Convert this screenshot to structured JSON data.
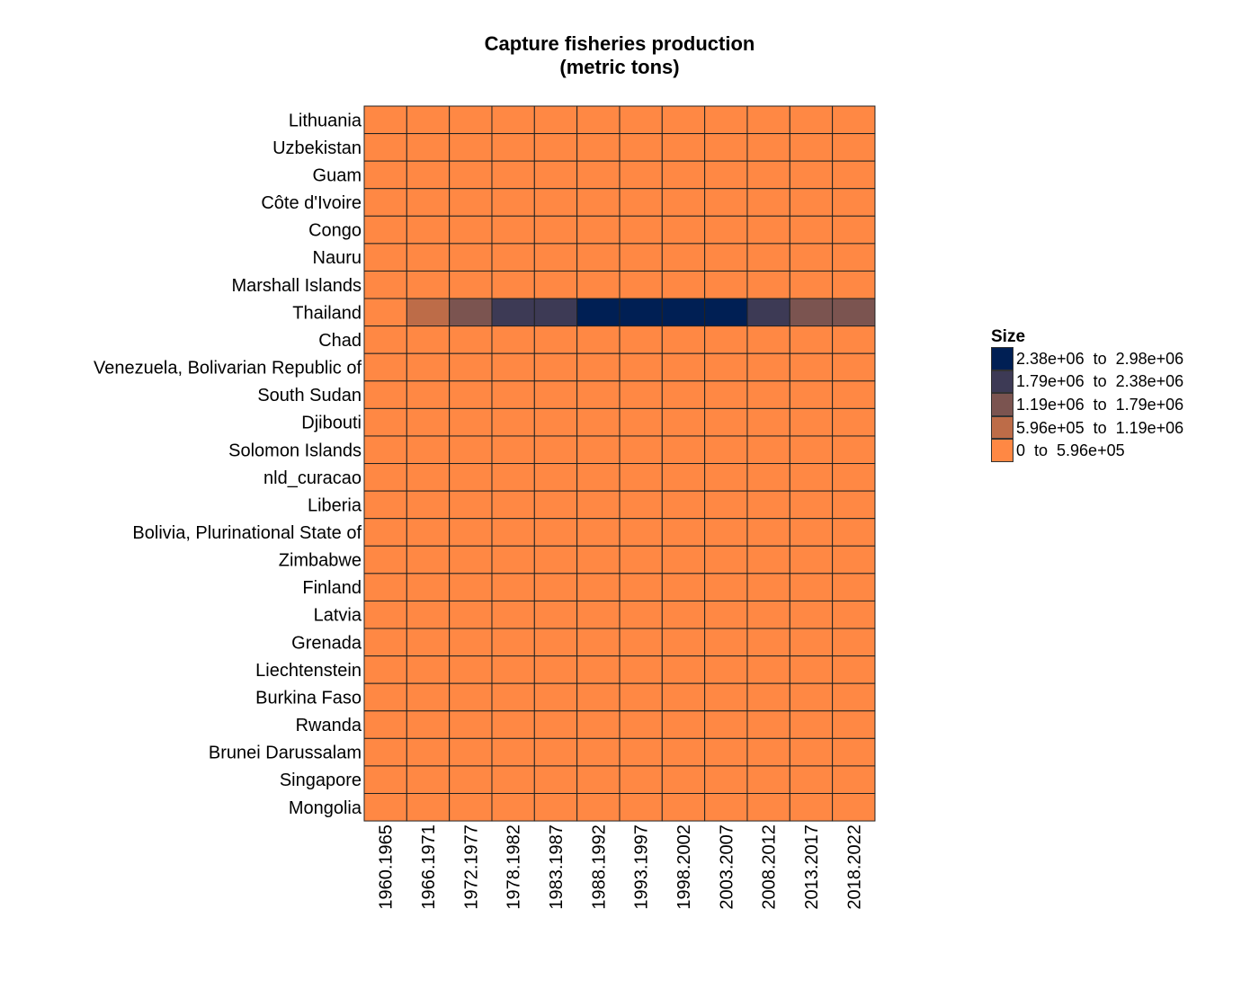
{
  "chart_data": {
    "type": "heatmap",
    "title": [
      "Capture fisheries production",
      "(metric tons)"
    ],
    "xlabel": "",
    "ylabel": "",
    "x_categories": [
      "1960.1965",
      "1966.1971",
      "1972.1977",
      "1978.1982",
      "1983.1987",
      "1988.1992",
      "1993.1997",
      "1998.2002",
      "2003.2007",
      "2008.2012",
      "2013.2017",
      "2018.2022"
    ],
    "y_categories": [
      "Lithuania",
      "Uzbekistan",
      "Guam",
      "Côte d'Ivoire",
      "Congo",
      "Nauru",
      "Marshall Islands",
      "Thailand",
      "Chad",
      "Venezuela, Bolivarian Republic of",
      "South Sudan",
      "Djibouti",
      "Solomon Islands",
      "nld_curacao",
      "Liberia",
      "Bolivia, Plurinational State of",
      "Zimbabwe",
      "Finland",
      "Latvia",
      "Grenada",
      "Liechtenstein",
      "Burkina Faso",
      "Rwanda",
      "Brunei Darussalam",
      "Singapore",
      "Mongolia"
    ],
    "legend": {
      "title": "Size",
      "position": "right",
      "bins": [
        {
          "label": "2.38e+06  to  2.98e+06",
          "color": "#001F54"
        },
        {
          "label": "1.79e+06  to  2.38e+06",
          "color": "#3D3A55"
        },
        {
          "label": "1.19e+06  to  1.79e+06",
          "color": "#7B5450"
        },
        {
          "label": "5.96e+05  to  1.19e+06",
          "color": "#BD6C48"
        },
        {
          "label": "0  to  5.96e+05",
          "color": "#FF8844"
        }
      ]
    },
    "bin_index_note_values": "values[row][col] gives the legend bin index (0 = highest bin, 4 = lowest bin)",
    "values": [
      [
        4,
        4,
        4,
        4,
        4,
        4,
        4,
        4,
        4,
        4,
        4,
        4
      ],
      [
        4,
        4,
        4,
        4,
        4,
        4,
        4,
        4,
        4,
        4,
        4,
        4
      ],
      [
        4,
        4,
        4,
        4,
        4,
        4,
        4,
        4,
        4,
        4,
        4,
        4
      ],
      [
        4,
        4,
        4,
        4,
        4,
        4,
        4,
        4,
        4,
        4,
        4,
        4
      ],
      [
        4,
        4,
        4,
        4,
        4,
        4,
        4,
        4,
        4,
        4,
        4,
        4
      ],
      [
        4,
        4,
        4,
        4,
        4,
        4,
        4,
        4,
        4,
        4,
        4,
        4
      ],
      [
        4,
        4,
        4,
        4,
        4,
        4,
        4,
        4,
        4,
        4,
        4,
        4
      ],
      [
        4,
        3,
        2,
        1,
        1,
        0,
        0,
        0,
        0,
        1,
        2,
        2
      ],
      [
        4,
        4,
        4,
        4,
        4,
        4,
        4,
        4,
        4,
        4,
        4,
        4
      ],
      [
        4,
        4,
        4,
        4,
        4,
        4,
        4,
        4,
        4,
        4,
        4,
        4
      ],
      [
        4,
        4,
        4,
        4,
        4,
        4,
        4,
        4,
        4,
        4,
        4,
        4
      ],
      [
        4,
        4,
        4,
        4,
        4,
        4,
        4,
        4,
        4,
        4,
        4,
        4
      ],
      [
        4,
        4,
        4,
        4,
        4,
        4,
        4,
        4,
        4,
        4,
        4,
        4
      ],
      [
        4,
        4,
        4,
        4,
        4,
        4,
        4,
        4,
        4,
        4,
        4,
        4
      ],
      [
        4,
        4,
        4,
        4,
        4,
        4,
        4,
        4,
        4,
        4,
        4,
        4
      ],
      [
        4,
        4,
        4,
        4,
        4,
        4,
        4,
        4,
        4,
        4,
        4,
        4
      ],
      [
        4,
        4,
        4,
        4,
        4,
        4,
        4,
        4,
        4,
        4,
        4,
        4
      ],
      [
        4,
        4,
        4,
        4,
        4,
        4,
        4,
        4,
        4,
        4,
        4,
        4
      ],
      [
        4,
        4,
        4,
        4,
        4,
        4,
        4,
        4,
        4,
        4,
        4,
        4
      ],
      [
        4,
        4,
        4,
        4,
        4,
        4,
        4,
        4,
        4,
        4,
        4,
        4
      ],
      [
        4,
        4,
        4,
        4,
        4,
        4,
        4,
        4,
        4,
        4,
        4,
        4
      ],
      [
        4,
        4,
        4,
        4,
        4,
        4,
        4,
        4,
        4,
        4,
        4,
        4
      ],
      [
        4,
        4,
        4,
        4,
        4,
        4,
        4,
        4,
        4,
        4,
        4,
        4
      ],
      [
        4,
        4,
        4,
        4,
        4,
        4,
        4,
        4,
        4,
        4,
        4,
        4
      ],
      [
        4,
        4,
        4,
        4,
        4,
        4,
        4,
        4,
        4,
        4,
        4,
        4
      ],
      [
        4,
        4,
        4,
        4,
        4,
        4,
        4,
        4,
        4,
        4,
        4,
        4
      ]
    ],
    "grid": false
  }
}
